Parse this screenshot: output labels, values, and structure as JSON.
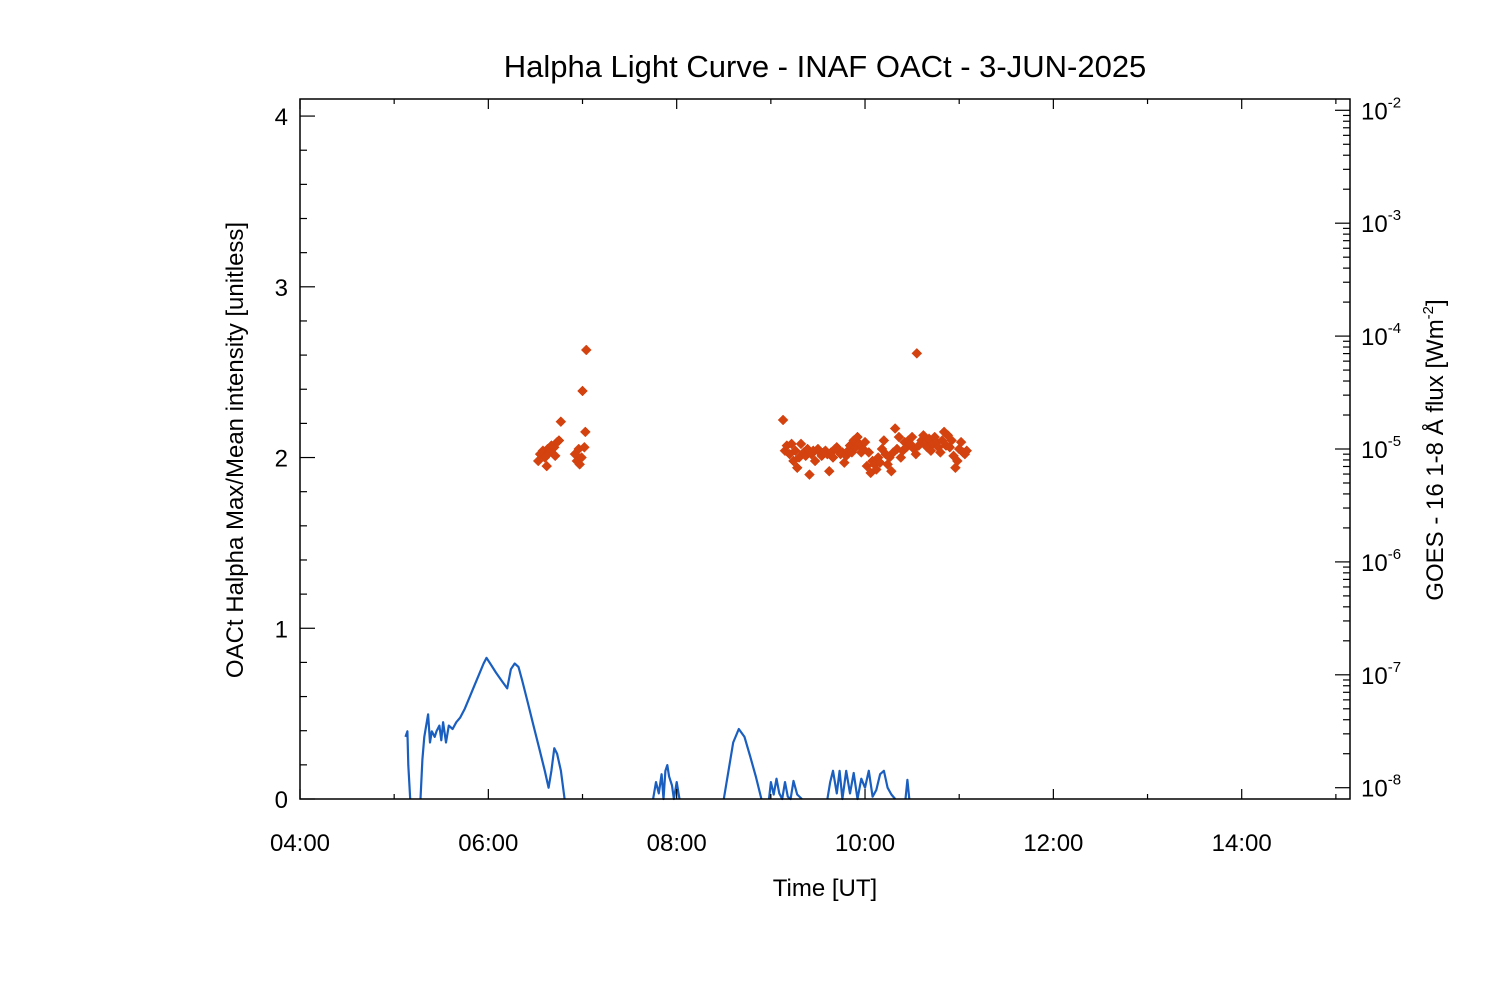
{
  "chart_data": {
    "type": "scatter",
    "title": "Halpha Light Curve - INAF OACt -  3-JUN-2025",
    "xlabel": "Time [UT]",
    "ylabel": "OACt Halpha Max/Mean intensity [unitless]",
    "y2label": {
      "prefix": "GOES - 16 1-8 Å flux [Wm",
      "exponent": "-2",
      "suffix": "]"
    },
    "xlim": [
      4.0,
      15.15
    ],
    "ylim": [
      0,
      4.1
    ],
    "y2lim_log10": [
      -8.1,
      -1.9
    ],
    "y2_scale": "log",
    "grid": false,
    "legend": "none",
    "xticks": [
      {
        "value": 4,
        "label": "04:00"
      },
      {
        "value": 6,
        "label": "06:00"
      },
      {
        "value": 8,
        "label": "08:00"
      },
      {
        "value": 10,
        "label": "10:00"
      },
      {
        "value": 12,
        "label": "12:00"
      },
      {
        "value": 14,
        "label": "14:00"
      }
    ],
    "yticks": [
      {
        "value": 0,
        "label": "0"
      },
      {
        "value": 1,
        "label": "1"
      },
      {
        "value": 2,
        "label": "2"
      },
      {
        "value": 3,
        "label": "3"
      },
      {
        "value": 4,
        "label": "4"
      }
    ],
    "y2ticks": [
      {
        "exp": -8,
        "base": "10",
        "sup": "-8"
      },
      {
        "exp": -7,
        "base": "10",
        "sup": "-7"
      },
      {
        "exp": -6,
        "base": "10",
        "sup": "-6"
      },
      {
        "exp": -5,
        "base": "10",
        "sup": "-5"
      },
      {
        "exp": -4,
        "base": "10",
        "sup": "-4"
      },
      {
        "exp": -3,
        "base": "10",
        "sup": "-3"
      },
      {
        "exp": -2,
        "base": "10",
        "sup": "-2"
      }
    ],
    "series": [
      {
        "axis": "left",
        "type": "scatter",
        "color": "#d3420f",
        "marker": "diamond",
        "points": [
          [
            6.53,
            1.98
          ],
          [
            6.55,
            2.02
          ],
          [
            6.58,
            2.04
          ],
          [
            6.6,
            2.0
          ],
          [
            6.62,
            1.95
          ],
          [
            6.63,
            2.05
          ],
          [
            6.65,
            2.03
          ],
          [
            6.67,
            2.07
          ],
          [
            6.7,
            2.06
          ],
          [
            6.71,
            2.01
          ],
          [
            6.73,
            2.09
          ],
          [
            6.75,
            2.1
          ],
          [
            6.77,
            2.21
          ],
          [
            6.92,
            2.02
          ],
          [
            6.94,
            1.98
          ],
          [
            6.96,
            2.05
          ],
          [
            6.97,
            1.96
          ],
          [
            6.99,
            2.0
          ],
          [
            7.0,
            2.39
          ],
          [
            7.02,
            2.06
          ],
          [
            7.03,
            2.15
          ],
          [
            7.04,
            2.63
          ],
          [
            9.13,
            2.22
          ],
          [
            9.15,
            2.04
          ],
          [
            9.17,
            2.07
          ],
          [
            9.2,
            2.02
          ],
          [
            9.22,
            2.08
          ],
          [
            9.24,
            1.98
          ],
          [
            9.26,
            2.04
          ],
          [
            9.28,
            1.94
          ],
          [
            9.3,
            2.0
          ],
          [
            9.32,
            2.08
          ],
          [
            9.35,
            2.03
          ],
          [
            9.37,
            2.01
          ],
          [
            9.39,
            2.05
          ],
          [
            9.41,
            1.9
          ],
          [
            9.43,
            2.02
          ],
          [
            9.45,
            2.04
          ],
          [
            9.47,
            1.98
          ],
          [
            9.5,
            2.05
          ],
          [
            9.52,
            2.03
          ],
          [
            9.54,
            2.01
          ],
          [
            9.56,
            2.03
          ],
          [
            9.58,
            2.04
          ],
          [
            9.6,
            2.02
          ],
          [
            9.62,
            1.92
          ],
          [
            9.64,
            2.03
          ],
          [
            9.66,
            2.0
          ],
          [
            9.68,
            2.05
          ],
          [
            9.7,
            2.06
          ],
          [
            9.72,
            2.04
          ],
          [
            9.74,
            2.02
          ],
          [
            9.76,
            2.03
          ],
          [
            9.78,
            1.97
          ],
          [
            9.8,
            2.01
          ],
          [
            9.82,
            2.04
          ],
          [
            9.84,
            2.07
          ],
          [
            9.86,
            2.03
          ],
          [
            9.88,
            2.1
          ],
          [
            9.9,
            2.06
          ],
          [
            9.92,
            2.12
          ],
          [
            9.94,
            2.08
          ],
          [
            9.96,
            2.03
          ],
          [
            9.98,
            2.05
          ],
          [
            10.0,
            2.09
          ],
          [
            10.02,
            1.95
          ],
          [
            10.04,
            2.03
          ],
          [
            10.06,
            1.91
          ],
          [
            10.08,
            1.98
          ],
          [
            10.1,
            1.96
          ],
          [
            10.12,
            1.93
          ],
          [
            10.14,
            2.0
          ],
          [
            10.16,
            1.97
          ],
          [
            10.18,
            2.05
          ],
          [
            10.2,
            2.1
          ],
          [
            10.22,
            2.02
          ],
          [
            10.24,
            1.96
          ],
          [
            10.26,
            2.0
          ],
          [
            10.28,
            1.92
          ],
          [
            10.3,
            2.03
          ],
          [
            10.32,
            2.17
          ],
          [
            10.34,
            2.05
          ],
          [
            10.36,
            2.12
          ],
          [
            10.38,
            2.0
          ],
          [
            10.4,
            2.04
          ],
          [
            10.42,
            2.09
          ],
          [
            10.44,
            2.06
          ],
          [
            10.46,
            2.1
          ],
          [
            10.48,
            2.08
          ],
          [
            10.5,
            2.12
          ],
          [
            10.52,
            2.05
          ],
          [
            10.54,
            2.02
          ],
          [
            10.55,
            2.61
          ],
          [
            10.57,
            2.07
          ],
          [
            10.6,
            2.1
          ],
          [
            10.62,
            2.13
          ],
          [
            10.64,
            2.08
          ],
          [
            10.66,
            2.06
          ],
          [
            10.68,
            2.11
          ],
          [
            10.7,
            2.04
          ],
          [
            10.72,
            2.08
          ],
          [
            10.74,
            2.12
          ],
          [
            10.76,
            2.09
          ],
          [
            10.78,
            2.06
          ],
          [
            10.8,
            2.03
          ],
          [
            10.82,
            2.1
          ],
          [
            10.84,
            2.15
          ],
          [
            10.86,
            2.07
          ],
          [
            10.88,
            2.13
          ],
          [
            10.9,
            2.06
          ],
          [
            10.92,
            2.1
          ],
          [
            10.94,
            2.01
          ],
          [
            10.96,
            1.94
          ],
          [
            10.98,
            1.98
          ],
          [
            11.0,
            2.05
          ],
          [
            11.02,
            2.09
          ],
          [
            11.04,
            2.03
          ],
          [
            11.06,
            2.02
          ],
          [
            11.08,
            2.04
          ]
        ]
      },
      {
        "axis": "right",
        "type": "line",
        "color": "#1a5fbf",
        "segments": [
          [
            [
              5.12,
              -7.55
            ],
            [
              5.14,
              -7.5
            ],
            [
              5.15,
              -7.8
            ],
            [
              5.17,
              -8.1
            ]
          ],
          [
            [
              5.28,
              -8.1
            ],
            [
              5.3,
              -7.75
            ],
            [
              5.32,
              -7.55
            ],
            [
              5.34,
              -7.45
            ],
            [
              5.36,
              -7.35
            ],
            [
              5.38,
              -7.6
            ],
            [
              5.4,
              -7.5
            ],
            [
              5.43,
              -7.55
            ],
            [
              5.45,
              -7.5
            ],
            [
              5.48,
              -7.45
            ],
            [
              5.5,
              -7.58
            ],
            [
              5.52,
              -7.42
            ],
            [
              5.55,
              -7.6
            ],
            [
              5.58,
              -7.45
            ],
            [
              5.62,
              -7.48
            ],
            [
              5.66,
              -7.42
            ],
            [
              5.7,
              -7.38
            ],
            [
              5.75,
              -7.3
            ],
            [
              5.8,
              -7.2
            ],
            [
              5.85,
              -7.1
            ],
            [
              5.9,
              -7.0
            ],
            [
              5.95,
              -6.9
            ],
            [
              5.98,
              -6.85
            ],
            [
              6.02,
              -6.9
            ],
            [
              6.08,
              -6.98
            ],
            [
              6.14,
              -7.05
            ],
            [
              6.2,
              -7.12
            ],
            [
              6.24,
              -6.95
            ],
            [
              6.28,
              -6.9
            ],
            [
              6.32,
              -6.93
            ],
            [
              6.36,
              -7.05
            ],
            [
              6.42,
              -7.25
            ],
            [
              6.48,
              -7.45
            ],
            [
              6.54,
              -7.65
            ],
            [
              6.6,
              -7.85
            ],
            [
              6.64,
              -8.0
            ],
            [
              6.67,
              -7.85
            ],
            [
              6.7,
              -7.65
            ],
            [
              6.73,
              -7.7
            ],
            [
              6.77,
              -7.85
            ],
            [
              6.81,
              -8.1
            ]
          ],
          [
            [
              7.75,
              -8.1
            ],
            [
              7.78,
              -7.95
            ],
            [
              7.81,
              -8.05
            ],
            [
              7.84,
              -7.88
            ],
            [
              7.86,
              -8.1
            ],
            [
              7.88,
              -7.85
            ],
            [
              7.9,
              -7.8
            ],
            [
              7.92,
              -7.9
            ],
            [
              7.95,
              -7.98
            ],
            [
              7.97,
              -8.1
            ],
            [
              8.0,
              -7.95
            ],
            [
              8.03,
              -8.1
            ]
          ],
          [
            [
              8.5,
              -8.1
            ],
            [
              8.55,
              -7.85
            ],
            [
              8.6,
              -7.6
            ],
            [
              8.66,
              -7.48
            ],
            [
              8.72,
              -7.55
            ],
            [
              8.78,
              -7.72
            ],
            [
              8.84,
              -7.9
            ],
            [
              8.9,
              -8.1
            ]
          ],
          [
            [
              8.98,
              -8.1
            ],
            [
              9.0,
              -7.95
            ],
            [
              9.03,
              -8.06
            ],
            [
              9.06,
              -7.92
            ],
            [
              9.09,
              -8.05
            ],
            [
              9.12,
              -8.1
            ],
            [
              9.15,
              -7.95
            ],
            [
              9.18,
              -8.08
            ],
            [
              9.21,
              -8.1
            ],
            [
              9.24,
              -7.94
            ],
            [
              9.28,
              -8.06
            ],
            [
              9.33,
              -8.1
            ]
          ],
          [
            [
              9.6,
              -8.1
            ],
            [
              9.63,
              -7.95
            ],
            [
              9.66,
              -7.85
            ],
            [
              9.7,
              -8.05
            ],
            [
              9.73,
              -7.85
            ],
            [
              9.76,
              -8.1
            ],
            [
              9.8,
              -7.85
            ],
            [
              9.84,
              -8.05
            ],
            [
              9.88,
              -7.87
            ],
            [
              9.92,
              -8.1
            ],
            [
              9.96,
              -7.92
            ],
            [
              10.0,
              -8.0
            ],
            [
              10.04,
              -7.85
            ],
            [
              10.08,
              -8.08
            ],
            [
              10.12,
              -8.02
            ],
            [
              10.16,
              -7.88
            ],
            [
              10.2,
              -7.85
            ],
            [
              10.24,
              -8.0
            ],
            [
              10.28,
              -8.06
            ],
            [
              10.32,
              -8.1
            ]
          ],
          [
            [
              10.43,
              -8.1
            ],
            [
              10.45,
              -7.93
            ],
            [
              10.47,
              -8.1
            ]
          ]
        ]
      }
    ]
  }
}
